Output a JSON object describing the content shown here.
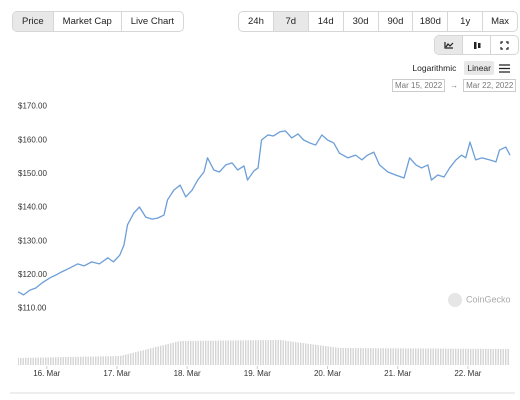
{
  "tabs": [
    "Price",
    "Market Cap",
    "Live Chart"
  ],
  "ranges": [
    "24h",
    "7d",
    "14d",
    "30d",
    "90d",
    "180d",
    "1y",
    "Max"
  ],
  "scale_options": [
    "Logarithmic",
    "Linear"
  ],
  "date_from": "Mar 15, 2022",
  "date_to": "Mar 22, 2022",
  "watermark": "CoinGecko",
  "chart_data": {
    "type": "line",
    "color": "#6d9ed8",
    "grid": false,
    "x": [
      15.59,
      15.67,
      15.76,
      15.84,
      15.93,
      16.04,
      16.13,
      16.21,
      16.33,
      16.44,
      16.53,
      16.64,
      16.75,
      16.87,
      16.95,
      17.04,
      17.1,
      17.15,
      17.24,
      17.32,
      17.41,
      17.5,
      17.58,
      17.67,
      17.72,
      17.81,
      17.9,
      17.98,
      18.07,
      18.15,
      18.24,
      18.29,
      18.38,
      18.46,
      18.55,
      18.64,
      18.72,
      18.81,
      18.86,
      18.95,
      19.01,
      19.06,
      19.15,
      19.23,
      19.32,
      19.4,
      19.49,
      19.58,
      19.66,
      19.75,
      19.83,
      19.92,
      20.0,
      20.09,
      20.17,
      20.29,
      20.4,
      20.49,
      20.57,
      20.66,
      20.74,
      20.86,
      20.97,
      21.09,
      21.17,
      21.26,
      21.34,
      21.43,
      21.48,
      21.57,
      21.66,
      21.74,
      21.83,
      21.91,
      21.97,
      22.03,
      22.11,
      22.2,
      22.31,
      22.4,
      22.45,
      22.54,
      22.6
    ],
    "values": [
      115.1,
      114.2,
      115.6,
      116.2,
      117.7,
      119.2,
      120.1,
      121.0,
      122.2,
      123.4,
      122.8,
      124.0,
      123.4,
      125.2,
      124.0,
      126.0,
      129.0,
      135.0,
      138.5,
      140.3,
      137.3,
      136.7,
      137.0,
      137.9,
      142.4,
      145.3,
      146.8,
      143.3,
      145.3,
      148.3,
      150.7,
      154.9,
      151.3,
      150.7,
      152.8,
      153.4,
      151.3,
      152.5,
      148.3,
      151.0,
      151.9,
      160.2,
      161.7,
      161.4,
      162.6,
      162.9,
      160.8,
      162.0,
      160.2,
      159.3,
      158.7,
      161.7,
      160.2,
      159.3,
      156.3,
      154.9,
      155.7,
      154.3,
      155.7,
      156.6,
      152.8,
      150.7,
      149.8,
      148.9,
      154.9,
      152.8,
      151.9,
      152.8,
      148.3,
      149.8,
      149.2,
      151.9,
      154.3,
      155.7,
      154.9,
      159.6,
      154.3,
      154.9,
      154.3,
      153.7,
      157.2,
      158.1,
      155.7
    ],
    "xlim": [
      15.59,
      22.6
    ],
    "xticks": [
      {
        "value": 16,
        "label": "16. Mar"
      },
      {
        "value": 17,
        "label": "17. Mar"
      },
      {
        "value": 18,
        "label": "18. Mar"
      },
      {
        "value": 19,
        "label": "19. Mar"
      },
      {
        "value": 20,
        "label": "20. Mar"
      },
      {
        "value": 21,
        "label": "21. Mar"
      },
      {
        "value": 22,
        "label": "22. Mar"
      }
    ],
    "ylim": [
      107,
      172
    ],
    "yticks": [
      {
        "value": 110,
        "label": "$110.00"
      },
      {
        "value": 120,
        "label": "$120.00"
      },
      {
        "value": 130,
        "label": "$130.00"
      },
      {
        "value": 140,
        "label": "$140.00"
      },
      {
        "value": 150,
        "label": "$150.00"
      },
      {
        "value": 160,
        "label": "$160.00"
      },
      {
        "value": 170,
        "label": "$170.00"
      }
    ]
  }
}
